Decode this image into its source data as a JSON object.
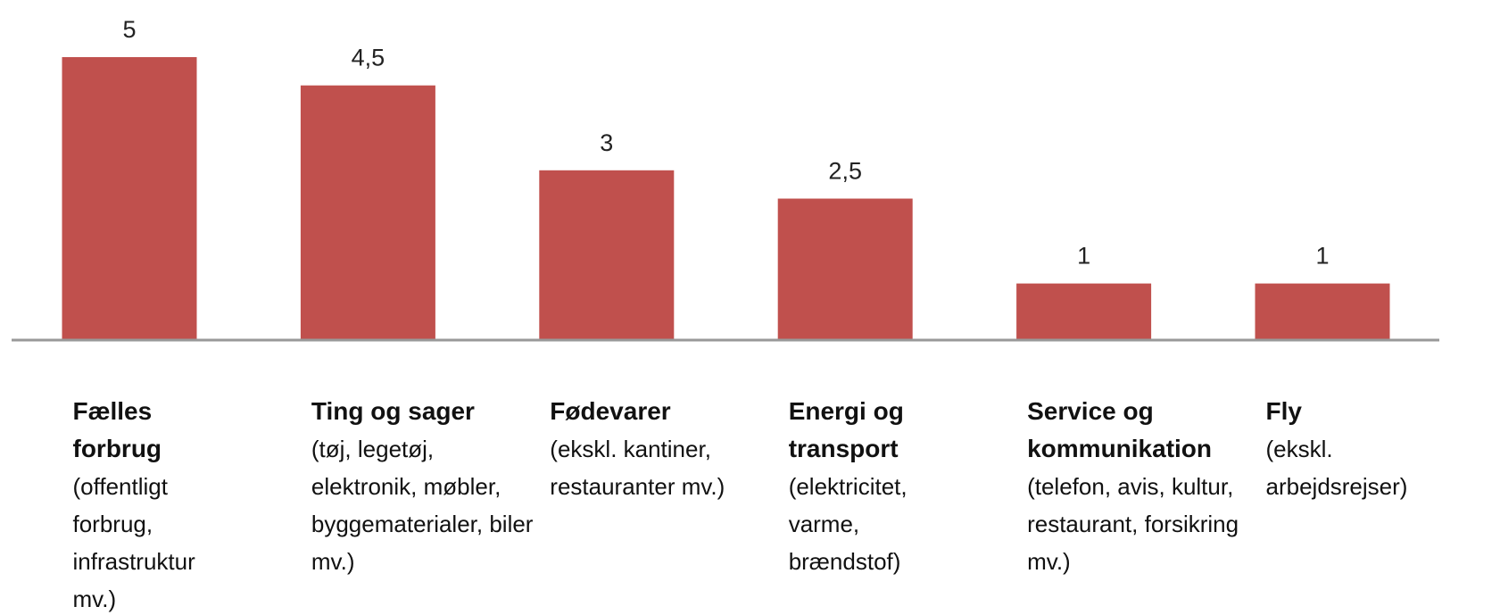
{
  "chart_data": {
    "type": "bar",
    "categories": [
      "Fælles forbrug",
      "Ting og sager",
      "Fødevarer",
      "Energi og transport",
      "Service og kommunikation",
      "Fly"
    ],
    "category_notes": [
      "(offentligt forbrug, infrastruktur mv.)",
      "(tøj, legetøj, elektronik, møbler, byggematerialer, biler mv.)",
      "(ekskl. kantiner, restauranter mv.)",
      "(elektricitet, varme, brændstof)",
      "(telefon, avis, kultur, restaurant, forsikring mv.)",
      "(ekskl. arbejdsrejser)"
    ],
    "values": [
      5,
      4.5,
      3,
      2.5,
      1,
      1
    ],
    "value_labels": [
      "5",
      "4,5",
      "3",
      "2,5",
      "1",
      "1"
    ],
    "color": "#c0504d",
    "ylim": [
      0,
      5
    ]
  }
}
